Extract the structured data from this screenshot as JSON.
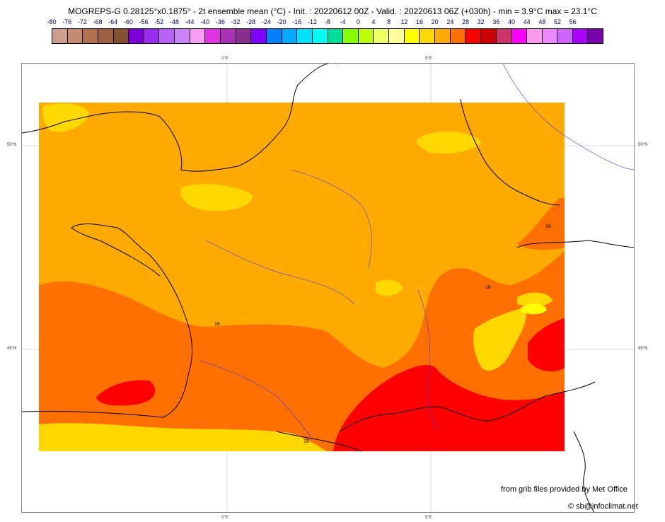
{
  "title": "MOGREPS-G 0.28125°x0.1875° - 2t ensemble mean (°C) - Init. : 20220612 00Z - Valid. : 20220613 06Z (+030h) - min = 3.9°C max = 23.1°C",
  "legend": {
    "ticks": [
      "-80",
      "-76",
      "-72",
      "-68",
      "-64",
      "-60",
      "-56",
      "-52",
      "-48",
      "-44",
      "-40",
      "-36",
      "-32",
      "-28",
      "-24",
      "-20",
      "-16",
      "-12",
      "-8",
      "-4",
      "0",
      "4",
      "8",
      "12",
      "16",
      "20",
      "24",
      "28",
      "32",
      "36",
      "40",
      "44",
      "48",
      "52",
      "56"
    ],
    "colors": [
      "#cc9e8e",
      "#c48a70",
      "#b27050",
      "#9e6040",
      "#845030",
      "#7a00d6",
      "#9a2cf0",
      "#b860f8",
      "#c884f6",
      "#f89ef6",
      "#e034e0",
      "#a832b4",
      "#882f90",
      "#8000ff",
      "#0080ff",
      "#00aaff",
      "#00e0ff",
      "#00ffee",
      "#00dd99",
      "#88ff00",
      "#bbff00",
      "#eeff66",
      "#ffff99",
      "#ffff00",
      "#ffd800",
      "#ffaa00",
      "#ff7000",
      "#ff0000",
      "#cc0000",
      "#cc3366",
      "#ff00ff",
      "#ff99ee",
      "#ee88ff",
      "#cc66ff",
      "#aa00ff",
      "#7a00aa"
    ]
  },
  "map": {
    "lon_labels": [
      "0°E",
      "5°E"
    ],
    "lat_labels": [
      "50°N",
      "45°N"
    ],
    "contour_labels": [
      "16",
      "16",
      "16",
      "16"
    ],
    "field_colors": {
      "t12_16": "#ffaa00",
      "t8_12": "#ffd800",
      "t16_20": "#ff7000",
      "t20_24": "#ff0000",
      "t4_8": "#ffff00"
    }
  },
  "credits": {
    "source": "from grib files provided by Met Office",
    "copyright": "© sb@infoclimat.net"
  }
}
